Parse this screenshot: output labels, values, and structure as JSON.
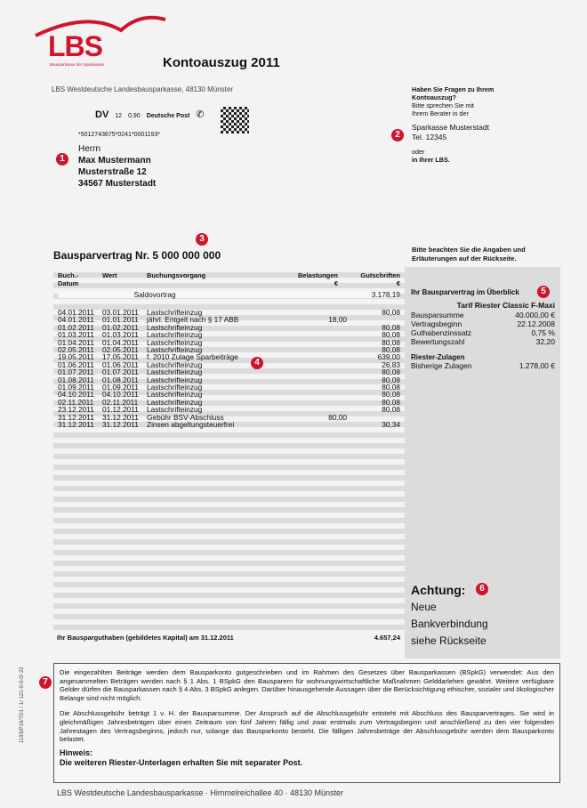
{
  "header": {
    "logo_text": "LBS",
    "logo_tagline": "Bausparkasse der Sparkassen",
    "title": "Kontoauszug 2011",
    "sender_line": "LBS Westdeutsche Landesbausparkasse, 48130 Münster"
  },
  "postage": {
    "dv": "DV",
    "num1": "12",
    "num2": "0,90",
    "carrier": "Deutsche Post",
    "barcode_number": "*5012743675*0241*0001193*"
  },
  "recipient": {
    "badge": "1",
    "salutation": "Herrn",
    "name": "Max Mustermann",
    "street": "Musterstraße 12",
    "city": "34567 Musterstadt"
  },
  "contact": {
    "badge": "2",
    "q1": "Haben Sie Fragen zu Ihrem",
    "q2": "Kontoauszug?",
    "s1": "Bitte sprechen Sie mit",
    "s2": "Ihrem Berater in der",
    "bank": "Sparkasse Musterstadt",
    "tel": "Tel. 12345",
    "or": "oder",
    "lbs": "in Ihrer LBS."
  },
  "notice": {
    "l1": "Bitte beachten Sie die Angaben und",
    "l2": "Erläuterungen auf der Rückseite."
  },
  "contract": {
    "badge": "3",
    "title": "Bausparvertrag Nr. 5 000 000 000"
  },
  "table": {
    "headers": {
      "buch": "Buch.-",
      "datum": "Datum",
      "wert": "Wert",
      "vorgang": "Buchungsvorgang",
      "belast": "Belastungen",
      "gutschr": "Gutschriften",
      "eur": "€"
    },
    "saldo_label": "Saldovortrag",
    "saldo_value": "3.178,19",
    "badge": "4",
    "rows": [
      [
        "04.01.2011",
        "03.01.2011",
        "Lastschrifteinzug",
        "",
        "80,08"
      ],
      [
        "04.01.2011",
        "01.01.2011",
        "jährl. Entgelt nach § 17 ABB",
        "18,00",
        ""
      ],
      [
        "01.02.2011",
        "01.02.2011",
        "Lastschrifteinzug",
        "",
        "80,08"
      ],
      [
        "01.03.2011",
        "01.03.2011",
        "Lastschrifteinzug",
        "",
        "80,08"
      ],
      [
        "01.04.2011",
        "01.04.2011",
        "Lastschrifteinzug",
        "",
        "80,08"
      ],
      [
        "02.05.2011",
        "02.05.2011",
        "Lastschrifteinzug",
        "",
        "80,08"
      ],
      [
        "19.05.2011",
        "17.05.2011",
        "f. 2010 Zulage Sparbeiträge",
        "",
        "639,00"
      ],
      [
        "01.06.2011",
        "01.06.2011",
        "Lastschrifteinzug",
        "",
        "26,83"
      ],
      [
        "01.07.2011",
        "01.07.2011",
        "Lastschrifteinzug",
        "",
        "80,08"
      ],
      [
        "01.08.2011",
        "01.08.2011",
        "Lastschrifteinzug",
        "",
        "80,08"
      ],
      [
        "01.09.2011",
        "01.09.2011",
        "Lastschrifteinzug",
        "",
        "80,08"
      ],
      [
        "04.10.2011",
        "04.10.2011",
        "Lastschrifteinzug",
        "",
        "80,08"
      ],
      [
        "02.11.2011",
        "02.11.2011",
        "Lastschrifteinzug",
        "",
        "80,08"
      ],
      [
        "23.12.2011",
        "01.12.2011",
        "Lastschrifteinzug",
        "",
        "80,08"
      ],
      [
        "31.12.2011",
        "31.12.2011",
        "Gebühr BSV-Abschluss",
        "80,00",
        ""
      ],
      [
        "31.12.2011",
        "31.12.2011",
        "Zinsen abgeltungsteuerfrei",
        "",
        "30,34"
      ]
    ],
    "total_label": "Ihr Bausparguthaben (gebildetes Kapital) am 31.12.2011",
    "total_value": "4.657,24"
  },
  "overview": {
    "badge": "5",
    "title": "Ihr Bausparvertrag im Überblick",
    "tarif": "Tarif Riester Classic F-Maxi",
    "items": [
      [
        "Bausparsumme",
        "40.000,00 €"
      ],
      [
        "Vertragsbeginn",
        "22.12.2008"
      ],
      [
        "Guthabenzinssatz",
        "0,75 %"
      ],
      [
        "Bewertungszahl",
        "32,20"
      ]
    ],
    "zulagen_title": "Riester-Zulagen",
    "zulagen_label": "Bisherige Zulagen",
    "zulagen_value": "1.278,00 €"
  },
  "attention": {
    "badge": "6",
    "title": "Achtung:",
    "l1": "Neue",
    "l2": "Bankverbindung",
    "l3": "siehe Rückseite"
  },
  "legal": {
    "badge": "7",
    "side_code": "1193/P19/7D1 / 1/ 121-0-0-0/ 22",
    "p1": "Die eingezahlten Beiträge werden dem Bausparkonto gutgeschrieben und im Rahmen des Gesetzes über Bausparkassen (BSpkG) verwendet: Aus den angesammelten Beträgen werden nach § 1 Abs. 1 BSpkG den Bausparern für wohnungswirtschaftliche Maßnahmen Gelddarlehen gewährt. Weitere verfügbare Gelder dürfen die Bausparkassen nach § 4 Abs. 3 BSpkG anlegen. Darüber hinausgehende Aussagen über die Berücksichtigung ethischer, sozialer und ökologischer Belange sind nicht möglich.",
    "p2": "Die Abschlussgebühr beträgt 1 v. H. der Bausparsumme. Der Anspruch auf die Abschlussgebühr entsteht mit Abschluss des Bausparvertrages. Sie wird in gleichmäßigen Jahresbeträgen über einen Zeitraum von fünf Jahren fällig und zwar erstmals zum Vertragsbeginn und anschließend zu den vier folgenden Jahrestagen des Vertragsbeginns, jedoch nur, solange das Bausparkonto besteht. Die fälligen Jahresbeträge der Abschlussgebühr werden dem Bausparkonto belastet.",
    "hint_title": "Hinweis:",
    "hint": "Die weiteren Riester-Unterlagen erhalten Sie mit separater Post."
  },
  "footer": "LBS Westdeutsche Landesbausparkasse · Himmelreichallee 40 · 48130 Münster",
  "colors": {
    "brand": "#d0142c"
  }
}
